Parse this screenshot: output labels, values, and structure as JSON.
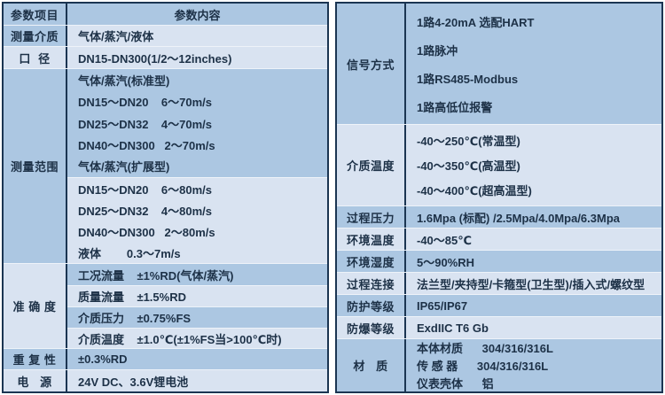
{
  "colors": {
    "band_medium": "#acc7e2",
    "band_light": "#d9e3f1",
    "border": "#1b3552",
    "text": "#1d3147"
  },
  "left_table": {
    "header": {
      "param": "参数项目",
      "content": "参数内容"
    },
    "medium_row": {
      "label": "测量介质",
      "value": "气体/蒸汽/液体"
    },
    "diameter_row": {
      "label": "口  径",
      "value": "DN15-DN300(1/2～12inches)"
    },
    "range_group": {
      "label": "测量范围",
      "standard_rows": [
        "气体/蒸汽(标准型)",
        "DN15～DN20    6～70m/s",
        "DN25～DN32    4～70m/s",
        "DN40～DN300   2～70m/s",
        "气体/蒸汽(扩展型)"
      ],
      "extended_rows": [
        "DN15～DN20    6～80m/s",
        "DN25～DN32    4～80m/s",
        "DN40～DN300   2～80m/s",
        "液体        0.3～7m/s"
      ]
    },
    "accuracy_group": {
      "label": "准 确 度",
      "rows": [
        "工况流量    ±1%RD(气体/蒸汽)",
        "质量流量    ±1.5%RD",
        "介质压力    ±0.75%FS",
        "介质温度    ±1.0℃(±1%FS当>100℃时)"
      ]
    },
    "repeatability_row": {
      "label": "重 复 性",
      "value": "±0.3%RD"
    },
    "power_row": {
      "label": "电   源",
      "value": "24V DC、3.6V锂电池"
    }
  },
  "right_table": {
    "signal_group": {
      "label": "信号方式",
      "rows": [
        "1路4-20mA 选配HART",
        "1路脉冲",
        "1路RS485-Modbus",
        "1路高低位报警"
      ]
    },
    "media_temp_group": {
      "label": "介质温度",
      "rows": [
        "-40～250℃(常温型)",
        "-40～350℃(高温型)",
        "-40～400℃(超高温型)"
      ]
    },
    "process_pressure_row": {
      "label": "过程压力",
      "value": "1.6Mpa (标配) /2.5Mpa/4.0Mpa/6.3Mpa"
    },
    "ambient_temp_row": {
      "label": "环境温度",
      "value": "-40～85℃"
    },
    "ambient_humidity_row": {
      "label": "环境湿度",
      "value": "5～90%RH"
    },
    "process_connection_row": {
      "label": "过程连接",
      "value": "法兰型/夹持型/卡箍型(卫生型)/插入式/螺纹型"
    },
    "protection_rating_row": {
      "label": "防护等级",
      "value": "IP65/IP67"
    },
    "explosion_rating_row": {
      "label": "防爆等级",
      "value": "ExdIIC T6 Gb"
    },
    "material_group": {
      "label": "材   质",
      "rows": [
        "本体材质      304/316/316L",
        "传 感 器      304/316/316L",
        "仪表壳体      铝"
      ]
    }
  }
}
